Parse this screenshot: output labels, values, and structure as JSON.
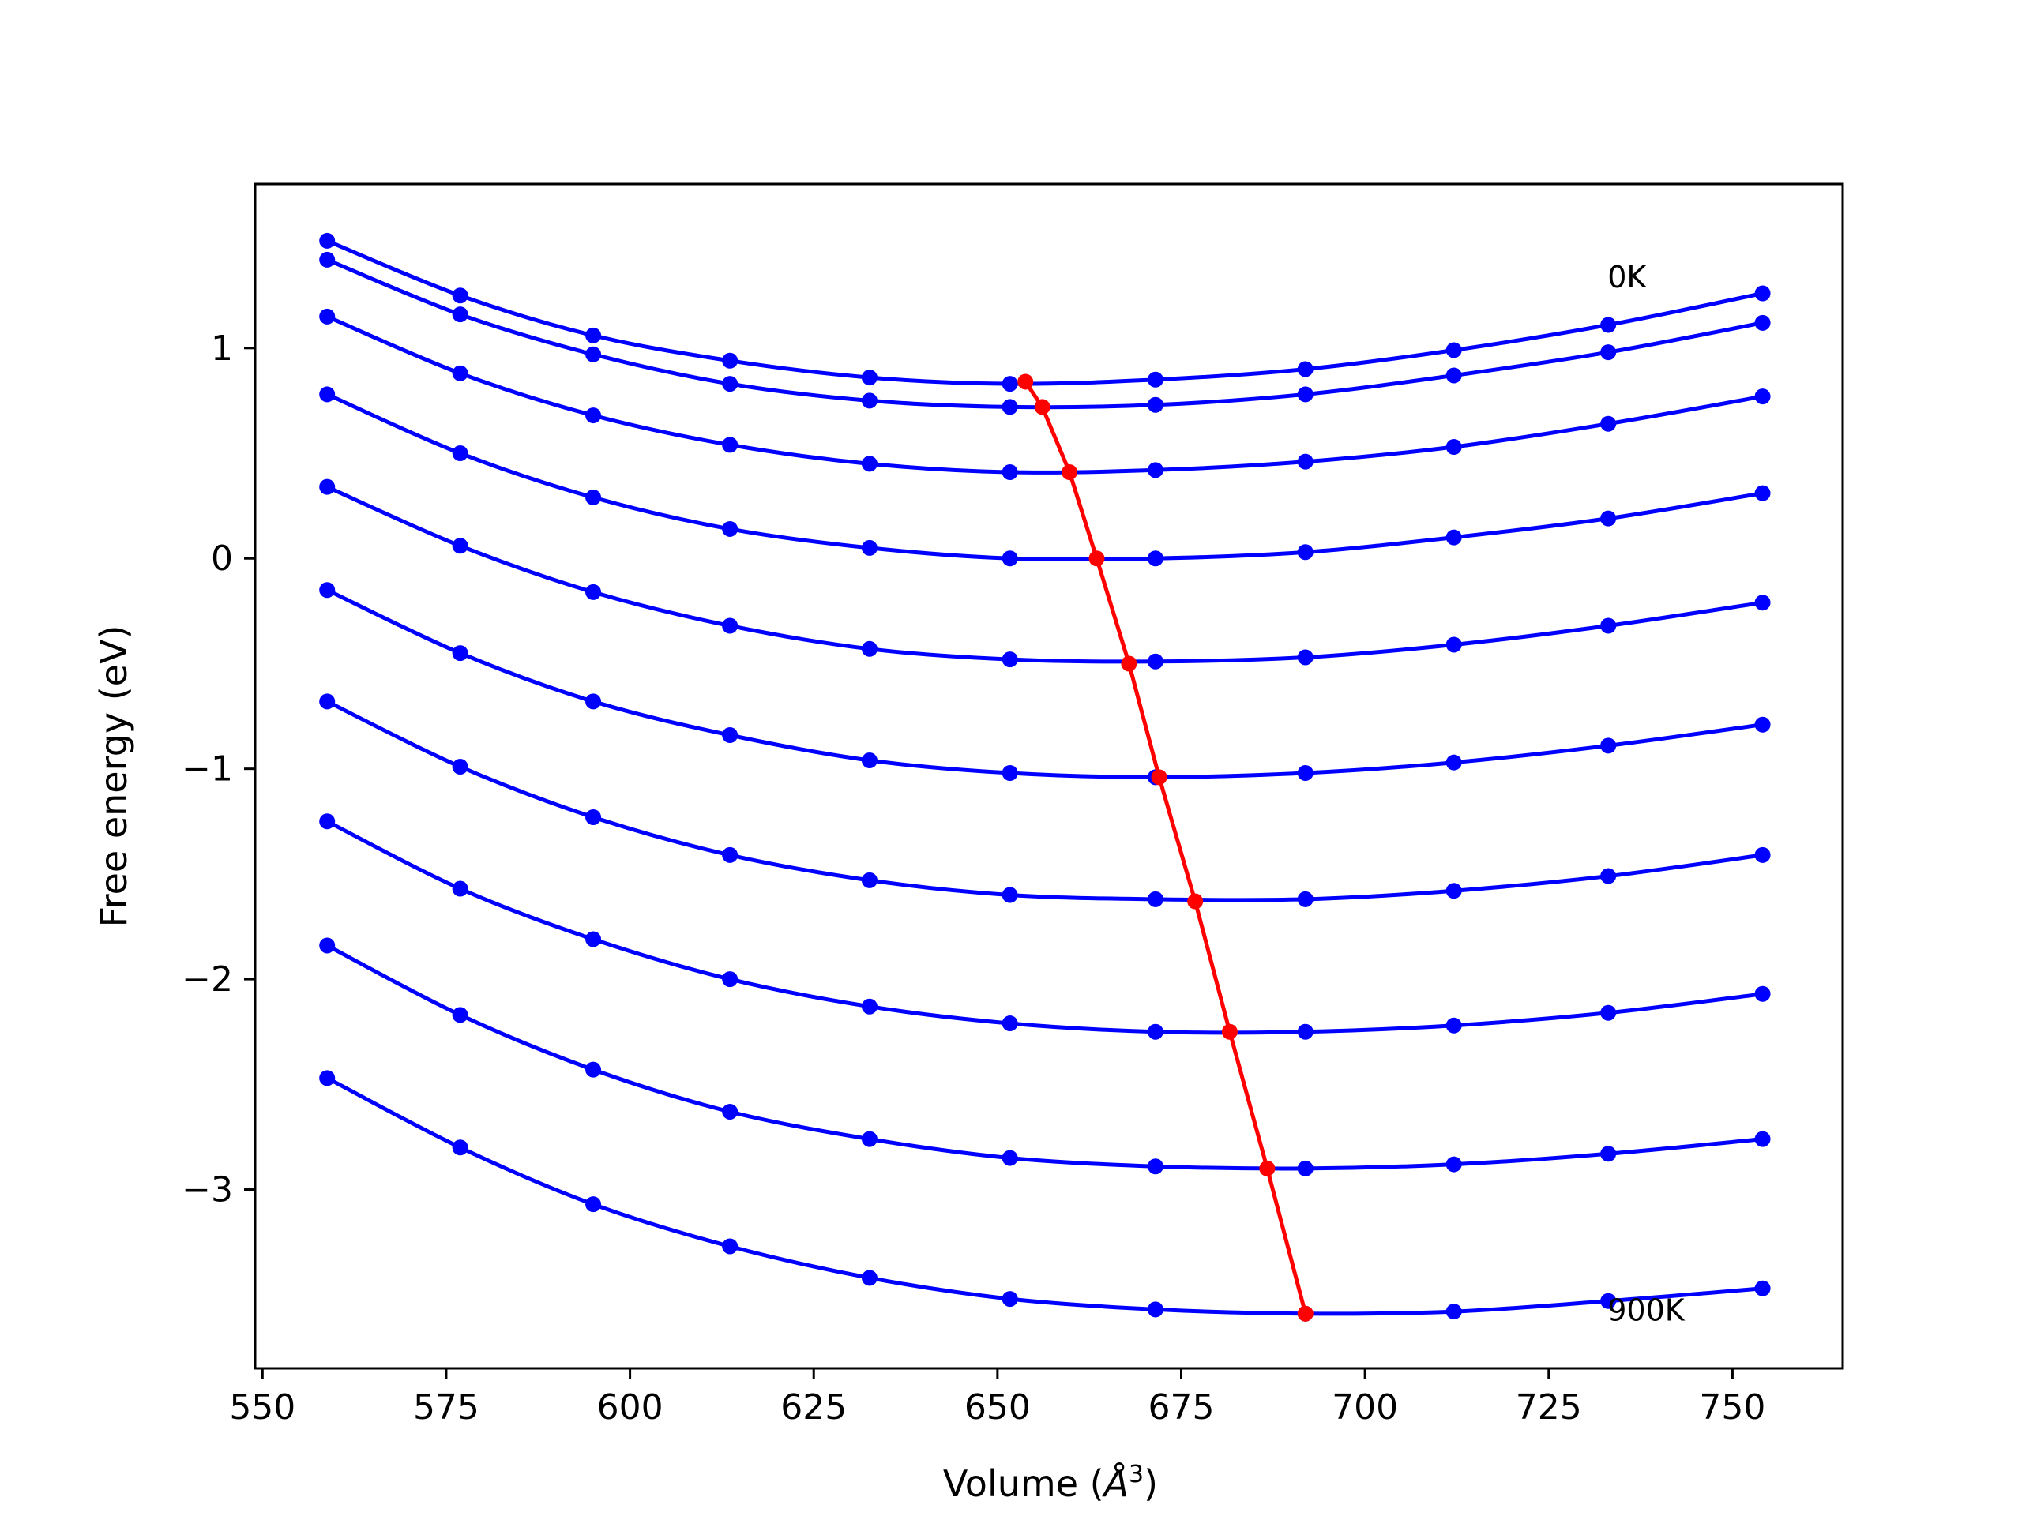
{
  "chart_data": {
    "type": "line",
    "xlabel_main": "Volume (",
    "xlabel_unit": "Å",
    "xlabel_sup": "3",
    "xlabel_end": ")",
    "ylabel": "Free energy (eV)",
    "xlim": [
      549,
      765
    ],
    "ylim": [
      -3.85,
      1.78
    ],
    "xticks": [
      550,
      575,
      600,
      625,
      650,
      675,
      700,
      725,
      750
    ],
    "yticks": [
      1,
      0,
      -1,
      -2,
      -3
    ],
    "ytick_labels": [
      "1",
      "0",
      "−1",
      "−2",
      "−3"
    ],
    "grid": false,
    "colors": {
      "curves": "#0000ff",
      "minima": "#ff0000"
    },
    "annotations": [
      {
        "text": "0K",
        "x": 733,
        "y": 1.34
      },
      {
        "text": "900K",
        "x": 733,
        "y": -3.57
      }
    ],
    "x": [
      558.8,
      576.9,
      595.0,
      613.6,
      632.6,
      651.7,
      671.5,
      691.9,
      712.1,
      733.1,
      754.1
    ],
    "series": [
      {
        "values": [
          1.51,
          1.25,
          1.06,
          0.94,
          0.86,
          0.83,
          0.85,
          0.9,
          0.99,
          1.11,
          1.26
        ]
      },
      {
        "values": [
          1.42,
          1.16,
          0.97,
          0.83,
          0.75,
          0.72,
          0.73,
          0.78,
          0.87,
          0.98,
          1.12
        ]
      },
      {
        "values": [
          1.15,
          0.88,
          0.68,
          0.54,
          0.45,
          0.41,
          0.42,
          0.46,
          0.53,
          0.64,
          0.77
        ]
      },
      {
        "values": [
          0.78,
          0.5,
          0.29,
          0.14,
          0.05,
          0.0,
          0.0,
          0.03,
          0.1,
          0.19,
          0.31
        ]
      },
      {
        "values": [
          0.34,
          0.06,
          -0.16,
          -0.32,
          -0.43,
          -0.48,
          -0.49,
          -0.47,
          -0.41,
          -0.32,
          -0.21
        ]
      },
      {
        "values": [
          -0.15,
          -0.45,
          -0.68,
          -0.84,
          -0.96,
          -1.02,
          -1.04,
          -1.02,
          -0.97,
          -0.89,
          -0.79
        ]
      },
      {
        "values": [
          -0.68,
          -0.99,
          -1.23,
          -1.41,
          -1.53,
          -1.6,
          -1.62,
          -1.62,
          -1.58,
          -1.51,
          -1.41
        ]
      },
      {
        "values": [
          -1.25,
          -1.57,
          -1.81,
          -2.0,
          -2.13,
          -2.21,
          -2.25,
          -2.25,
          -2.22,
          -2.16,
          -2.07
        ]
      },
      {
        "values": [
          -1.84,
          -2.17,
          -2.43,
          -2.63,
          -2.76,
          -2.85,
          -2.89,
          -2.9,
          -2.88,
          -2.83,
          -2.76
        ]
      },
      {
        "values": [
          -2.47,
          -2.8,
          -3.07,
          -3.27,
          -3.42,
          -3.52,
          -3.57,
          -3.59,
          -3.58,
          -3.53,
          -3.47
        ]
      }
    ],
    "minima": {
      "x": [
        653.8,
        656.1,
        659.8,
        663.5,
        667.9,
        672.0,
        676.9,
        681.6,
        686.7,
        691.9
      ],
      "y": [
        0.84,
        0.72,
        0.41,
        0.0,
        -0.5,
        -1.04,
        -1.63,
        -2.25,
        -2.9,
        -3.59
      ]
    }
  }
}
